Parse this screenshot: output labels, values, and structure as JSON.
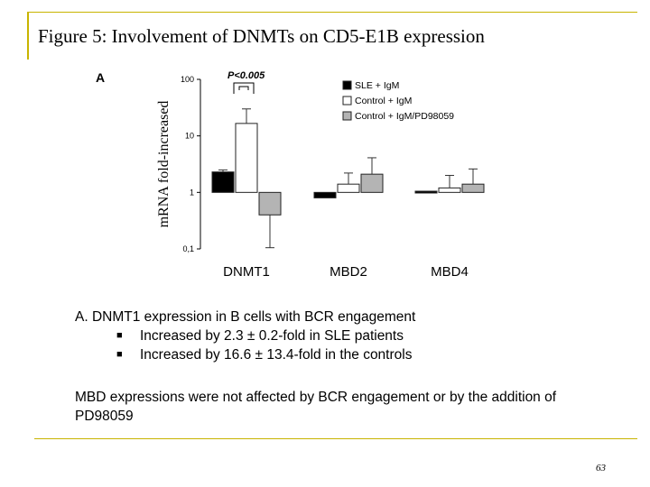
{
  "slide": {
    "title": "Figure 5: Involvement of DNMTs on CD5-E1B expression",
    "page_number": "63"
  },
  "colors": {
    "accent_rule": "#c8b400"
  },
  "chart_data": {
    "type": "bar",
    "panel_label": "A",
    "ylabel": "mRNA fold-increased",
    "yscale": "log",
    "ylim": [
      0.1,
      100
    ],
    "yticks": [
      0.1,
      1,
      10,
      100
    ],
    "ytick_labels": [
      "0,1",
      "1",
      "10",
      "100"
    ],
    "categories": [
      "DNMT1",
      "MBD2",
      "MBD4"
    ],
    "series": [
      {
        "name": "SLE + IgM",
        "color": "#000000",
        "values": [
          2.3,
          0.8,
          1.05
        ],
        "errors": [
          0.2,
          0.0,
          0.0
        ]
      },
      {
        "name": "Control + IgM",
        "color": "#ffffff",
        "values": [
          16.6,
          1.4,
          1.2
        ],
        "errors": [
          13.4,
          0.8,
          0.8
        ]
      },
      {
        "name": "Control + IgM/PD98059",
        "color": "#b4b4b4",
        "values": [
          0.4,
          2.1,
          1.4
        ],
        "errors": [
          0.3,
          2.0,
          1.2
        ]
      }
    ],
    "annotation": {
      "text": "P<0.005",
      "between": [
        "DNMT1",
        "DNMT1"
      ]
    },
    "legend_position": "top-right",
    "grid": false
  },
  "caption": {
    "heading": "A. DNMT1 expression in B cells with BCR engagement",
    "bullets": [
      "Increased by 2.3 ± 0.2-fold in SLE patients",
      "Increased by 16.6 ± 13.4-fold in the controls"
    ],
    "bullet_glyph": "■"
  },
  "note": "MBD expressions were not affected by BCR engagement or by the addition of PD98059"
}
